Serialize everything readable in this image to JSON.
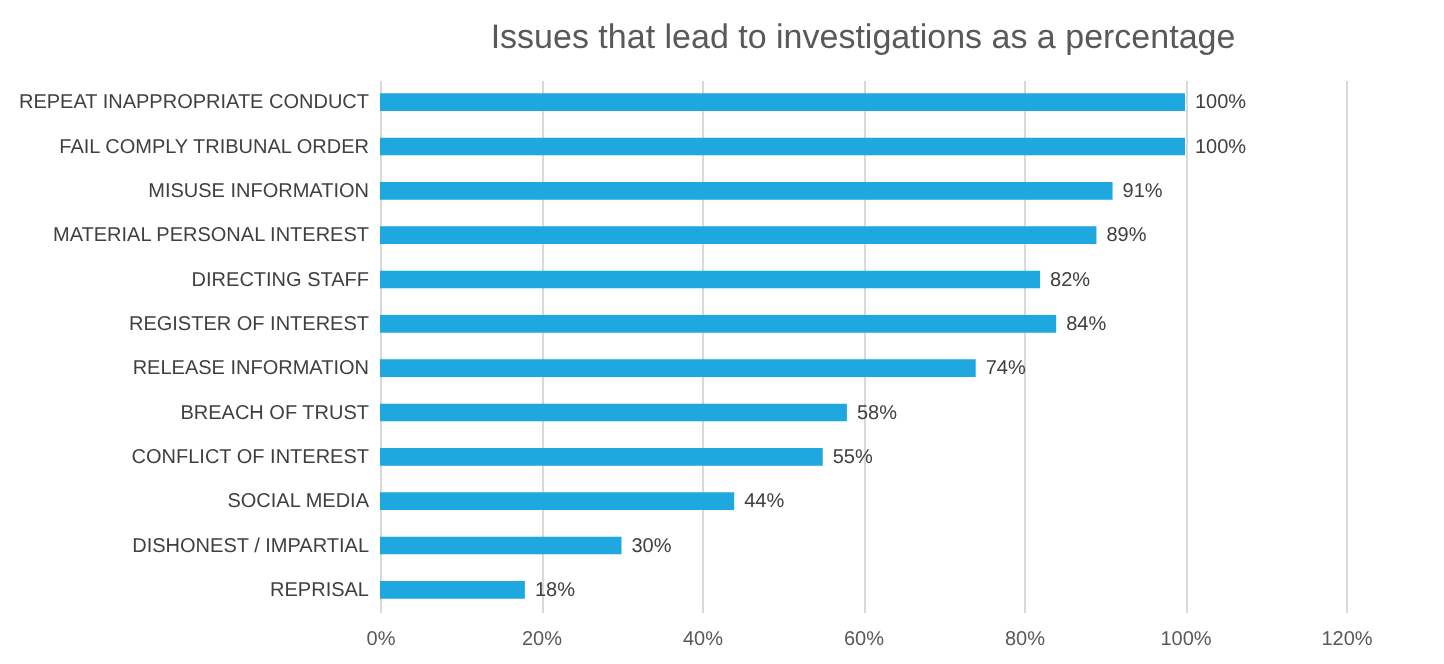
{
  "chart_data": {
    "type": "bar",
    "orientation": "horizontal",
    "title": "Issues that lead to investigations as a percentage",
    "categories": [
      "REPEAT INAPPROPRIATE CONDUCT",
      "FAIL COMPLY TRIBUNAL ORDER",
      "MISUSE INFORMATION",
      "MATERIAL PERSONAL INTEREST",
      "DIRECTING STAFF",
      "REGISTER OF INTEREST",
      "RELEASE INFORMATION",
      "BREACH OF TRUST",
      "CONFLICT OF INTEREST",
      "SOCIAL MEDIA",
      "DISHONEST / IMPARTIAL",
      "REPRISAL"
    ],
    "values": [
      100,
      100,
      91,
      89,
      82,
      84,
      74,
      58,
      55,
      44,
      30,
      18
    ],
    "value_labels": [
      "100%",
      "100%",
      "91%",
      "89%",
      "82%",
      "84%",
      "74%",
      "58%",
      "55%",
      "44%",
      "30%",
      "18%"
    ],
    "color": "#1fa8e0",
    "xlim": [
      0,
      120
    ],
    "xticks": [
      {
        "value": 0,
        "label": "0%"
      },
      {
        "value": 20,
        "label": "20%"
      },
      {
        "value": 40,
        "label": "40%"
      },
      {
        "value": 60,
        "label": "60%"
      },
      {
        "value": 80,
        "label": "80%"
      },
      {
        "value": 100,
        "label": "100%"
      },
      {
        "value": 120,
        "label": "120%"
      }
    ],
    "grid": true
  }
}
